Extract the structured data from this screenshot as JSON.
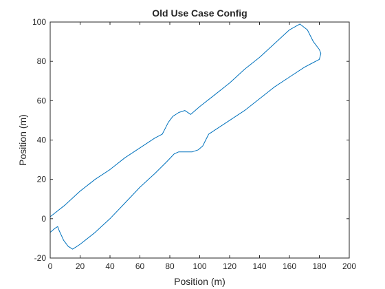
{
  "chart_data": {
    "type": "line",
    "title": "Old Use Case Config",
    "xlabel": "Position (m)",
    "ylabel": "Position (m)",
    "xlim": [
      0,
      200
    ],
    "ylim": [
      -20,
      100
    ],
    "xticks": [
      0,
      20,
      40,
      60,
      80,
      100,
      120,
      140,
      160,
      180,
      200
    ],
    "yticks": [
      -20,
      0,
      20,
      40,
      60,
      80,
      100
    ],
    "grid": false,
    "box": true,
    "series": [
      {
        "color": "#0072BD",
        "x": [
          0,
          10,
          20,
          30,
          40,
          50,
          60,
          70,
          75,
          77,
          79,
          82,
          86,
          90,
          94,
          100,
          110,
          120,
          130,
          140,
          150,
          160,
          167,
          172,
          176,
          180,
          181,
          180,
          175,
          170,
          160,
          150,
          140,
          130,
          120,
          110,
          106,
          104,
          102,
          99,
          95,
          90,
          86,
          83,
          78,
          70,
          60,
          50,
          40,
          30,
          20,
          17,
          15,
          12,
          9,
          6,
          5,
          3,
          0
        ],
        "y": [
          1,
          7,
          14,
          20,
          25,
          31,
          36,
          41,
          43,
          46,
          49,
          52,
          54,
          55,
          53,
          57,
          63,
          69,
          76,
          82,
          89,
          96,
          99,
          96,
          90,
          86,
          84,
          81,
          79,
          77,
          72,
          67,
          61,
          55,
          50,
          45,
          43,
          40,
          37,
          35,
          34,
          34,
          34,
          33,
          29,
          23,
          16,
          8,
          0,
          -7,
          -13,
          -14.5,
          -15.5,
          -14,
          -11,
          -6,
          -4,
          -5,
          -7
        ]
      }
    ]
  }
}
